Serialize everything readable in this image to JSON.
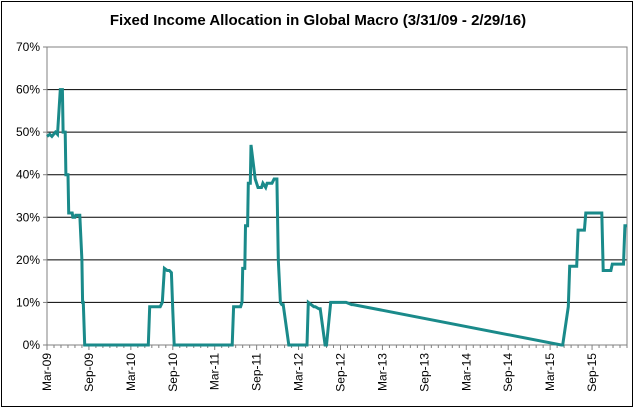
{
  "chart_data": {
    "type": "line",
    "title": "Fixed Income Allocation in Global Macro (3/31/09  - 2/29/16)",
    "xlabel": "",
    "ylabel": "",
    "ylim": [
      0,
      70
    ],
    "y_ticks": [
      "0%",
      "10%",
      "20%",
      "30%",
      "40%",
      "50%",
      "60%",
      "70%"
    ],
    "y_tick_values": [
      0,
      10,
      20,
      30,
      40,
      50,
      60,
      70
    ],
    "x_tick_labels": [
      "Mar-09",
      "Sep-09",
      "Mar-10",
      "Sep-10",
      "Mar-11",
      "Sep-11",
      "Mar-12",
      "Sep-12",
      "Mar-13",
      "Sep-13",
      "Mar-14",
      "Sep-14",
      "Mar-15",
      "Sep-15"
    ],
    "x_range_months": [
      0,
      83
    ],
    "grid": "horizontal",
    "line_color": "#1A8A8A",
    "series": [
      {
        "name": "Fixed Income Allocation",
        "x": [
          0,
          0.4,
          0.7,
          1.2,
          1.5,
          1.9,
          2.2,
          2.3,
          2.6,
          2.7,
          3.0,
          3.1,
          3.6,
          3.7,
          4.0,
          4.1,
          4.7,
          5.0,
          5.1,
          5.2,
          5.4,
          5.5,
          6.0,
          14.5,
          14.7,
          16.2,
          16.5,
          16.8,
          17.2,
          17.5,
          17.8,
          18.0,
          18.2,
          26.5,
          26.7,
          27.7,
          27.9,
          28.0,
          28.3,
          28.4,
          28.7,
          28.8,
          29.1,
          29.2,
          29.8,
          30.2,
          30.7,
          30.9,
          31.3,
          31.5,
          32.2,
          32.5,
          32.9,
          33.1,
          33.4,
          33.6,
          33.8,
          34.6,
          34.8,
          37.2,
          37.4,
          38.2,
          38.4,
          38.9,
          39.1,
          39.8,
          40.0,
          40.6,
          40.8,
          42.6,
          42.8,
          43.6,
          43.8,
          73.6,
          73.8,
          74.6,
          74.8,
          75.8,
          76.0,
          76.9,
          77.1,
          79.4,
          79.6,
          80.7,
          80.9,
          82.5,
          82.7,
          83.0
        ],
        "y": [
          49,
          49.5,
          49,
          50,
          49.5,
          60,
          60,
          50,
          50,
          40,
          40,
          31,
          31,
          30,
          30,
          30.5,
          30.5,
          20,
          10,
          10,
          0,
          0,
          0,
          0,
          9,
          9,
          10,
          18,
          17.5,
          17.5,
          17,
          8,
          0,
          0,
          9,
          9,
          10,
          18,
          18,
          28,
          28,
          38,
          38,
          47,
          39,
          37,
          37,
          38,
          37,
          38,
          38,
          39,
          39,
          20,
          10,
          9.5,
          9.5,
          0,
          0,
          0,
          10,
          9,
          9,
          8.5,
          8.5,
          0,
          0,
          10,
          10,
          10,
          10,
          9.5,
          9.5,
          0,
          0,
          9,
          18.5,
          18.5,
          27,
          27,
          31,
          31,
          17.5,
          17.5,
          19,
          19,
          28,
          28
        ]
      }
    ]
  }
}
